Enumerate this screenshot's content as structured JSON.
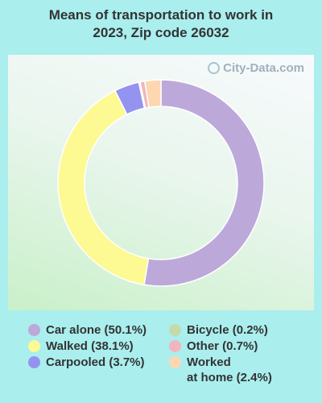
{
  "title_line1": "Means of transportation to work in",
  "title_line2": "2023, Zip code 26032",
  "watermark": "City-Data.com",
  "chart_data": {
    "type": "pie",
    "subtype": "donut",
    "title": "Means of transportation to work in 2023, Zip code 26032",
    "slices": [
      {
        "label": "Car alone",
        "value": 50.1,
        "display": "Car alone (50.1%)",
        "color": "#bda8da"
      },
      {
        "label": "Walked",
        "value": 38.1,
        "display": "Walked (38.1%)",
        "color": "#fdf993"
      },
      {
        "label": "Carpooled",
        "value": 3.7,
        "display": "Carpooled (3.7%)",
        "color": "#9593f0"
      },
      {
        "label": "Bicycle",
        "value": 0.2,
        "display": "Bicycle (0.2%)",
        "color": "#c2dba8"
      },
      {
        "label": "Other",
        "value": 0.7,
        "display": "Other (0.7%)",
        "color": "#f3b5bd"
      },
      {
        "label": "Worked at home",
        "value": 2.4,
        "display_line1": "Worked",
        "display_line2": "at home (2.4%)",
        "color": "#fdd7b0"
      }
    ],
    "legend_placement": "bottom"
  }
}
